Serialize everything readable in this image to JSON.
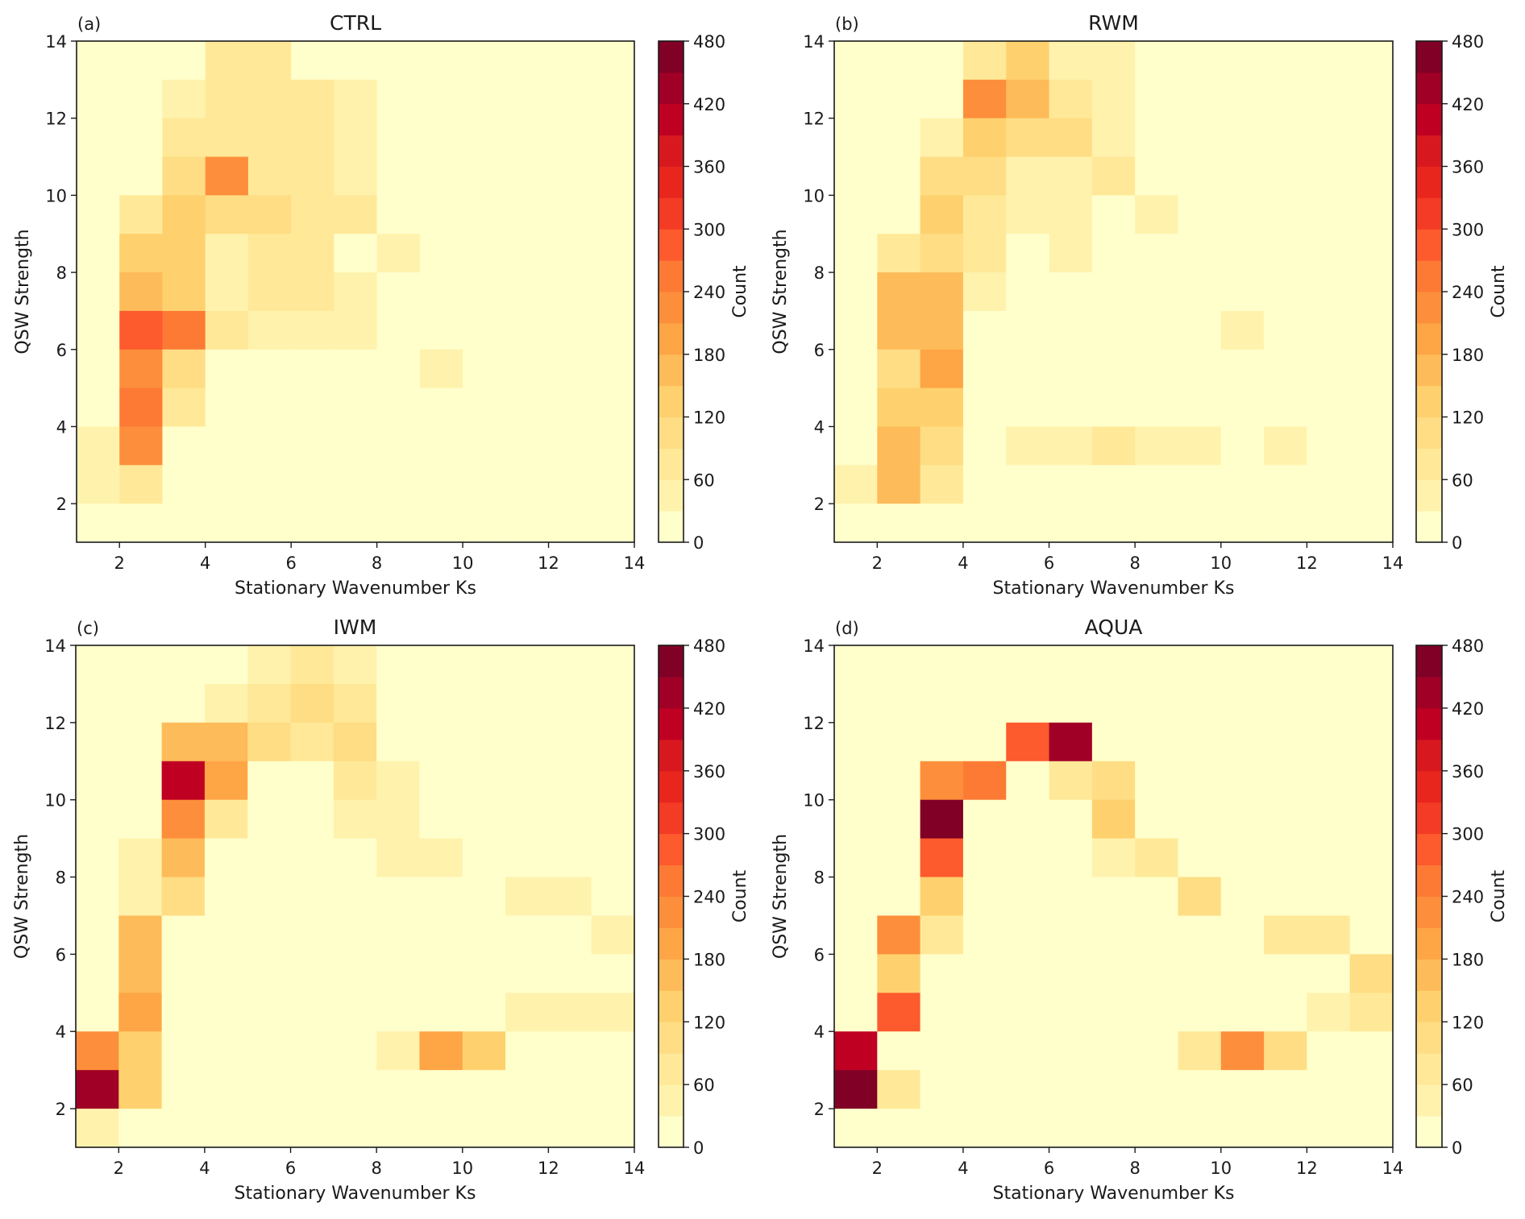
{
  "chart_data": {
    "type": "heatmap",
    "colorbar": {
      "label": "Count",
      "range": [
        0,
        480
      ],
      "levels": [
        0,
        30,
        60,
        90,
        120,
        150,
        180,
        210,
        240,
        270,
        300,
        330,
        360,
        390,
        420,
        450,
        480
      ],
      "tick_labels": [
        "0",
        "60",
        "120",
        "180",
        "240",
        "300",
        "360",
        "420",
        "480"
      ],
      "tick_values": [
        0,
        60,
        120,
        180,
        240,
        300,
        360,
        420,
        480
      ],
      "colors": [
        "#ffffcc",
        "#fff2ad",
        "#ffe998",
        "#fedd84",
        "#fed16e",
        "#febb59",
        "#fea546",
        "#fd8f3c",
        "#fd7a35",
        "#fd5a2d",
        "#f43b25",
        "#e8261e",
        "#d7191f",
        "#c00023",
        "#a10026",
        "#800026"
      ]
    },
    "x_range": [
      1,
      14
    ],
    "y_range": [
      1,
      14
    ],
    "x_tick_values": [
      2,
      4,
      6,
      8,
      10,
      12,
      14
    ],
    "x_tick_labels": [
      "2",
      "4",
      "6",
      "8",
      "10",
      "12",
      "14"
    ],
    "y_tick_values": [
      2,
      4,
      6,
      8,
      10,
      12,
      14
    ],
    "y_tick_labels": [
      "2",
      "4",
      "6",
      "8",
      "10",
      "12",
      "14"
    ],
    "xlabel": "Stationary Wavenumber Ks",
    "ylabel": "QSW Strength",
    "bin_edges_x": [
      1,
      2,
      3,
      4,
      5,
      6,
      7,
      8,
      9,
      10,
      11,
      12,
      13,
      14
    ],
    "bin_edges_y": [
      1,
      2,
      3,
      4,
      5,
      6,
      7,
      8,
      9,
      10,
      11,
      12,
      13,
      14
    ],
    "row_order": "top-to-bottom (y 13-14 first)",
    "panels": [
      {
        "letter": "(a)",
        "title": "CTRL",
        "counts": [
          [
            15,
            15,
            15,
            75,
            75,
            15,
            15,
            15,
            15,
            15,
            15,
            15,
            15
          ],
          [
            15,
            15,
            45,
            75,
            75,
            75,
            45,
            15,
            15,
            15,
            15,
            15,
            15
          ],
          [
            15,
            15,
            75,
            75,
            75,
            75,
            45,
            15,
            15,
            15,
            15,
            15,
            15
          ],
          [
            15,
            15,
            105,
            225,
            75,
            75,
            45,
            15,
            15,
            15,
            15,
            15,
            15
          ],
          [
            15,
            75,
            135,
            105,
            105,
            75,
            75,
            15,
            15,
            15,
            15,
            15,
            15
          ],
          [
            15,
            135,
            135,
            45,
            75,
            75,
            15,
            45,
            15,
            15,
            15,
            15,
            15
          ],
          [
            15,
            165,
            135,
            45,
            75,
            75,
            45,
            15,
            15,
            15,
            15,
            15,
            15
          ],
          [
            15,
            285,
            255,
            75,
            45,
            45,
            45,
            15,
            15,
            15,
            15,
            15,
            15
          ],
          [
            15,
            225,
            105,
            15,
            15,
            15,
            15,
            15,
            45,
            15,
            15,
            15,
            15
          ],
          [
            15,
            255,
            75,
            15,
            15,
            15,
            15,
            15,
            15,
            15,
            15,
            15,
            15
          ],
          [
            45,
            225,
            15,
            15,
            15,
            15,
            15,
            15,
            15,
            15,
            15,
            15,
            15
          ],
          [
            45,
            75,
            15,
            15,
            15,
            15,
            15,
            15,
            15,
            15,
            15,
            15,
            15
          ],
          [
            15,
            15,
            15,
            15,
            15,
            15,
            15,
            15,
            15,
            15,
            15,
            15,
            15
          ]
        ]
      },
      {
        "letter": "(b)",
        "title": "RWM",
        "counts": [
          [
            15,
            15,
            15,
            75,
            135,
            45,
            45,
            15,
            15,
            15,
            15,
            15,
            15
          ],
          [
            15,
            15,
            15,
            225,
            165,
            75,
            45,
            15,
            15,
            15,
            15,
            15,
            15
          ],
          [
            15,
            15,
            45,
            135,
            105,
            105,
            45,
            15,
            15,
            15,
            15,
            15,
            15
          ],
          [
            15,
            15,
            105,
            105,
            45,
            45,
            75,
            15,
            15,
            15,
            15,
            15,
            15
          ],
          [
            15,
            15,
            135,
            75,
            45,
            45,
            15,
            45,
            15,
            15,
            15,
            15,
            15
          ],
          [
            15,
            75,
            105,
            75,
            15,
            45,
            15,
            15,
            15,
            15,
            15,
            15,
            15
          ],
          [
            15,
            165,
            165,
            45,
            15,
            15,
            15,
            15,
            15,
            15,
            15,
            15,
            15
          ],
          [
            15,
            165,
            165,
            15,
            15,
            15,
            15,
            15,
            15,
            45,
            15,
            15,
            15
          ],
          [
            15,
            105,
            195,
            15,
            15,
            15,
            15,
            15,
            15,
            15,
            15,
            15,
            15
          ],
          [
            15,
            135,
            135,
            15,
            15,
            15,
            15,
            15,
            15,
            15,
            15,
            15,
            15
          ],
          [
            15,
            165,
            105,
            15,
            45,
            45,
            75,
            45,
            45,
            15,
            45,
            15,
            15
          ],
          [
            45,
            165,
            75,
            15,
            15,
            15,
            15,
            15,
            15,
            15,
            15,
            15,
            15
          ],
          [
            15,
            15,
            15,
            15,
            15,
            15,
            15,
            15,
            15,
            15,
            15,
            15,
            15
          ]
        ]
      },
      {
        "letter": "(c)",
        "title": "IWM",
        "counts": [
          [
            15,
            15,
            15,
            15,
            45,
            75,
            45,
            15,
            15,
            15,
            15,
            15,
            15
          ],
          [
            15,
            15,
            15,
            45,
            75,
            105,
            75,
            15,
            15,
            15,
            15,
            15,
            15
          ],
          [
            15,
            15,
            165,
            165,
            105,
            75,
            105,
            15,
            15,
            15,
            15,
            15,
            15
          ],
          [
            15,
            15,
            405,
            195,
            15,
            15,
            75,
            45,
            15,
            15,
            15,
            15,
            15
          ],
          [
            15,
            15,
            225,
            75,
            15,
            15,
            45,
            45,
            15,
            15,
            15,
            15,
            15
          ],
          [
            15,
            45,
            165,
            15,
            15,
            15,
            15,
            45,
            45,
            15,
            15,
            15,
            15
          ],
          [
            15,
            45,
            105,
            15,
            15,
            15,
            15,
            15,
            15,
            15,
            45,
            45,
            15
          ],
          [
            15,
            165,
            15,
            15,
            15,
            15,
            15,
            15,
            15,
            15,
            15,
            15,
            45
          ],
          [
            15,
            165,
            15,
            15,
            15,
            15,
            15,
            15,
            15,
            15,
            15,
            15,
            15
          ],
          [
            15,
            195,
            15,
            15,
            15,
            15,
            15,
            15,
            15,
            15,
            45,
            45,
            45
          ],
          [
            225,
            135,
            15,
            15,
            15,
            15,
            15,
            45,
            195,
            135,
            15,
            15,
            15
          ],
          [
            435,
            135,
            15,
            15,
            15,
            15,
            15,
            15,
            15,
            15,
            15,
            15,
            15
          ],
          [
            45,
            15,
            15,
            15,
            15,
            15,
            15,
            15,
            15,
            15,
            15,
            15,
            15
          ]
        ]
      },
      {
        "letter": "(d)",
        "title": "AQUA",
        "counts": [
          [
            15,
            15,
            15,
            15,
            15,
            15,
            15,
            15,
            15,
            15,
            15,
            15,
            15
          ],
          [
            15,
            15,
            15,
            15,
            15,
            15,
            15,
            15,
            15,
            15,
            15,
            15,
            15
          ],
          [
            15,
            15,
            15,
            15,
            285,
            435,
            15,
            15,
            15,
            15,
            15,
            15,
            15
          ],
          [
            15,
            15,
            225,
            255,
            15,
            75,
            105,
            15,
            15,
            15,
            15,
            15,
            15
          ],
          [
            15,
            15,
            465,
            15,
            15,
            15,
            135,
            15,
            15,
            15,
            15,
            15,
            15
          ],
          [
            15,
            15,
            285,
            15,
            15,
            15,
            45,
            75,
            15,
            15,
            15,
            15,
            15
          ],
          [
            15,
            15,
            135,
            15,
            15,
            15,
            15,
            15,
            105,
            15,
            15,
            15,
            15
          ],
          [
            15,
            225,
            75,
            15,
            15,
            15,
            15,
            15,
            15,
            15,
            75,
            75,
            15
          ],
          [
            15,
            135,
            15,
            15,
            15,
            15,
            15,
            15,
            15,
            15,
            15,
            15,
            105
          ],
          [
            15,
            285,
            15,
            15,
            15,
            15,
            15,
            15,
            15,
            15,
            15,
            45,
            75
          ],
          [
            405,
            15,
            15,
            15,
            15,
            15,
            15,
            15,
            75,
            225,
            105,
            15,
            15
          ],
          [
            465,
            75,
            15,
            15,
            15,
            15,
            15,
            15,
            15,
            15,
            15,
            15,
            15
          ],
          [
            15,
            15,
            15,
            15,
            15,
            15,
            15,
            15,
            15,
            15,
            15,
            15,
            15
          ]
        ]
      }
    ]
  }
}
